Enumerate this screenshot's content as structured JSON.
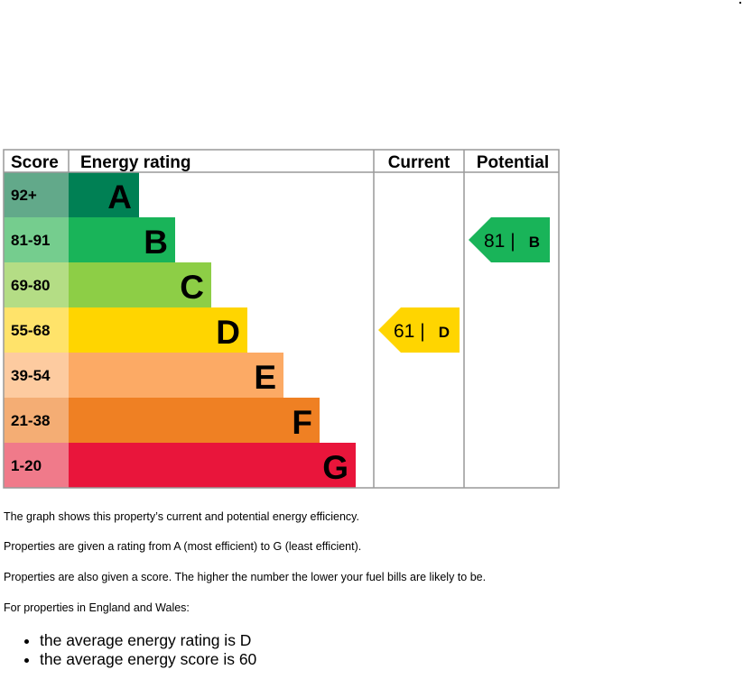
{
  "chart_data": {
    "type": "table",
    "headers": {
      "score": "Score",
      "rating": "Energy rating",
      "current": "Current",
      "potential": "Potential"
    },
    "bands": [
      {
        "letter": "A",
        "range": "92+",
        "color": "#008054",
        "tint": "#62a98a"
      },
      {
        "letter": "B",
        "range": "81-91",
        "color": "#19b459",
        "tint": "#75cd8e"
      },
      {
        "letter": "C",
        "range": "69-80",
        "color": "#8dce46",
        "tint": "#b4dd85"
      },
      {
        "letter": "D",
        "range": "55-68",
        "color": "#ffd500",
        "tint": "#ffe36a"
      },
      {
        "letter": "E",
        "range": "39-54",
        "color": "#fcaa65",
        "tint": "#fdcba0"
      },
      {
        "letter": "F",
        "range": "21-38",
        "color": "#ef8023",
        "tint": "#f4ad74"
      },
      {
        "letter": "G",
        "range": "1-20",
        "color": "#e9153b",
        "tint": "#f07a8a"
      }
    ],
    "current": {
      "score": 61,
      "band": "D",
      "label": "61 |",
      "color": "#ffd500"
    },
    "potential": {
      "score": 81,
      "band": "B",
      "label": "81 |",
      "color": "#19b459"
    }
  },
  "text": {
    "p1": "The graph shows this property’s current and potential energy efficiency.",
    "p2": "Properties are given a rating from A (most efficient) to G (least efficient).",
    "p3": "Properties are also given a score. The higher the number the lower your fuel bills are likely to be.",
    "p4": "For properties in England and Wales:",
    "bullets": [
      "the average energy rating is D",
      "the average energy score is 60"
    ]
  }
}
